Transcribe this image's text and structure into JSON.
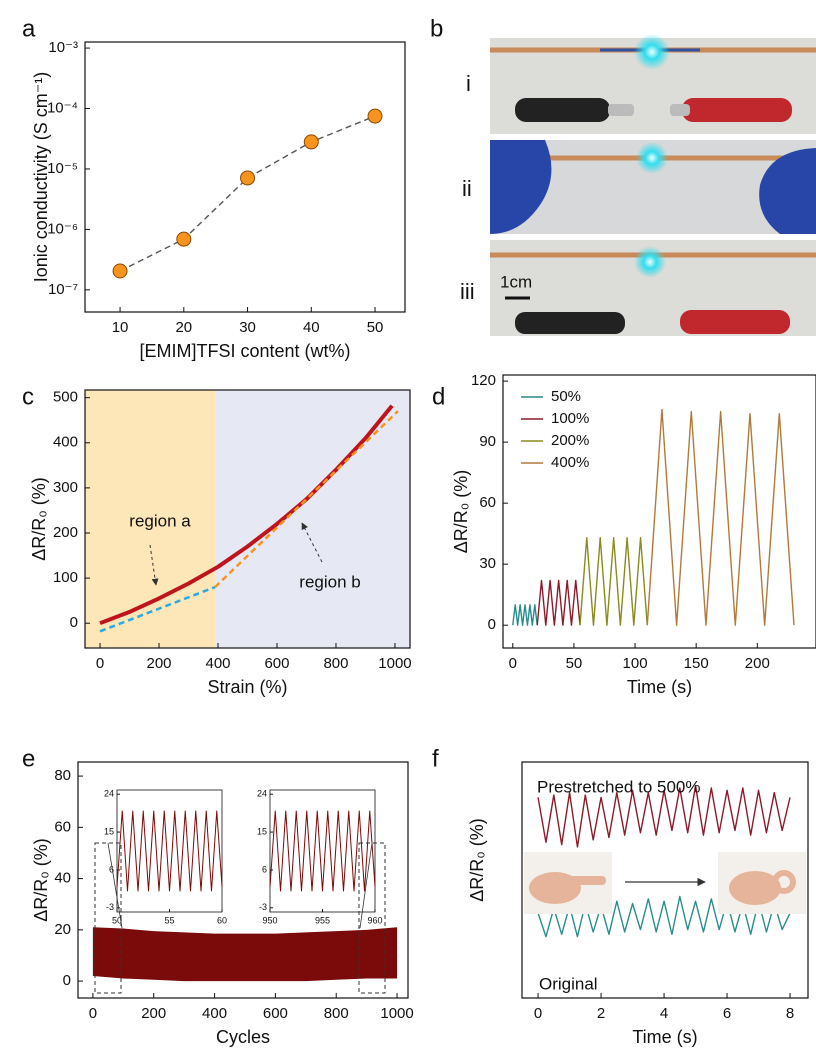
{
  "photo_panel": {
    "label": "b",
    "rows": [
      "i",
      "ii",
      "iii"
    ],
    "scale_bar": "1cm"
  },
  "chart_data": [
    {
      "type": "line",
      "panel_label": "a",
      "x_label": "[EMIM]TFSI content (wt%)",
      "y_label": "Ionic conductivity (S cm⁻¹)",
      "y_log": true,
      "markers": true,
      "x": [
        10,
        20,
        30,
        40,
        50
      ],
      "series": [
        {
          "color": "#f7941d",
          "line_color": "#555555",
          "dashed": true,
          "values": [
            2.05e-07,
            6.9e-07,
            7.1e-06,
            2.8e-05,
            7.5e-05
          ]
        }
      ],
      "xlim": [
        4.5,
        54.7
      ],
      "ylim": [
        4.3e-08,
        0.00126
      ],
      "xticks": [
        10,
        20,
        30,
        40,
        50
      ],
      "yticks": [
        {
          "value": 1e-07,
          "label": "10⁻⁷"
        },
        {
          "value": 1e-06,
          "label": "10⁻⁶"
        },
        {
          "value": 1e-05,
          "label": "10⁻⁵"
        },
        {
          "value": 0.0001,
          "label": "10⁻⁴"
        },
        {
          "value": 0.001,
          "label": "10⁻³"
        }
      ]
    },
    {
      "type": "line",
      "panel_label": "c",
      "x_label": "Strain (%)",
      "y_label": "ΔR/R₀ (%)",
      "regions": [
        {
          "x": [
            -51,
            390
          ],
          "color": "#fde6b8"
        },
        {
          "x": [
            390,
            1051
          ],
          "color": "#e6e9f4"
        }
      ],
      "series": [
        {
          "color": "#c0141c",
          "width": 4,
          "x": [
            0,
            100,
            200,
            300,
            400,
            500,
            600,
            700,
            800,
            900,
            990
          ],
          "values": [
            0,
            25,
            55,
            88,
            125,
            170,
            220,
            275,
            340,
            410,
            482
          ]
        },
        {
          "color": "#29abe2",
          "dashed": true,
          "width": 2.5,
          "x": [
            0,
            390
          ],
          "values": [
            -18,
            80
          ]
        },
        {
          "color": "#f7931e",
          "dashed": true,
          "width": 2.5,
          "x": [
            390,
            1010
          ],
          "values": [
            80,
            470
          ]
        }
      ],
      "annotations": [
        "region a",
        "region b"
      ],
      "xlim": [
        -51,
        1051
      ],
      "ylim": [
        -55,
        517
      ],
      "xticks": [
        0,
        200,
        400,
        600,
        800,
        1000
      ],
      "yticks": [
        0,
        100,
        200,
        300,
        400,
        500
      ]
    },
    {
      "type": "line",
      "panel_label": "d",
      "x_label": "Time (s)",
      "y_label": "ΔR/R₀ (%)",
      "legend": "upper left",
      "series": [
        {
          "name": "50%",
          "color": "#2a8c8c",
          "x": [
            0,
            2,
            4,
            6,
            8,
            10,
            12,
            14,
            16,
            18,
            20
          ],
          "values": [
            0,
            10,
            0,
            10,
            0,
            10,
            0,
            10,
            0,
            10,
            0
          ]
        },
        {
          "name": "100%",
          "color": "#8b1a2b",
          "x": [
            20,
            23.5,
            27,
            30.5,
            34,
            37.5,
            41,
            44.5,
            48,
            51.5,
            55
          ],
          "values": [
            0,
            22,
            0,
            22,
            0,
            22,
            0,
            22,
            0,
            22,
            0
          ]
        },
        {
          "name": "200%",
          "color": "#8a8a1e",
          "x": [
            55,
            60.5,
            66,
            71.5,
            77,
            82.5,
            88,
            93.5,
            99,
            104.5,
            110
          ],
          "values": [
            0,
            43,
            0,
            43,
            0,
            43,
            0,
            43,
            0,
            43,
            0
          ]
        },
        {
          "name": "400%",
          "color": "#b07a3a",
          "x": [
            110,
            122,
            134,
            146,
            158,
            170,
            182,
            194,
            206,
            218,
            230
          ],
          "values": [
            0,
            106,
            0,
            105,
            0,
            105,
            0,
            104,
            0,
            104,
            0
          ]
        }
      ],
      "xlim": [
        -8,
        248
      ],
      "ylim": [
        -11.2,
        123
      ],
      "xticks": [
        0,
        50,
        100,
        150,
        200
      ],
      "yticks": [
        0,
        30,
        60,
        90,
        120
      ]
    },
    {
      "type": "band",
      "panel_label": "e",
      "x_label": "Cycles",
      "y_label": "ΔR/R₀ (%)",
      "color": "#7b0a0a",
      "x": [
        0,
        100,
        200,
        300,
        400,
        500,
        600,
        700,
        800,
        900,
        1000
      ],
      "upper": [
        21,
        20.5,
        19.5,
        19,
        18.5,
        18.5,
        18.5,
        19,
        19.5,
        20,
        21
      ],
      "lower": [
        2,
        1,
        0.5,
        0,
        0,
        0,
        0,
        0,
        0.5,
        1,
        1
      ],
      "xlim": [
        -49,
        1036
      ],
      "ylim": [
        -6.6,
        85.5
      ],
      "xticks": [
        0,
        200,
        400,
        600,
        800,
        1000
      ],
      "yticks": [
        0,
        20,
        40,
        60,
        80
      ],
      "insets": [
        {
          "type": "line",
          "x": [
            50,
            50.5,
            51,
            51.5,
            52,
            52.5,
            53,
            53.5,
            54,
            54.5,
            55,
            55.5,
            56,
            56.5,
            57,
            57.5,
            58,
            58.5,
            59,
            59.5,
            60
          ],
          "series": [
            {
              "color": "#7b0a0a",
              "values": [
                2,
                20,
                1,
                20,
                1,
                20,
                1,
                20,
                1,
                20,
                1,
                20,
                1,
                20,
                1,
                20,
                1,
                20,
                1,
                20,
                2
              ]
            }
          ],
          "xlim": [
            50,
            60
          ],
          "ylim": [
            -4,
            25
          ],
          "xticks": [
            50,
            55,
            60
          ],
          "yticks": [
            -3,
            6,
            15,
            24
          ]
        },
        {
          "type": "line",
          "x": [
            950,
            950.5,
            951,
            951.5,
            952,
            952.5,
            953,
            953.5,
            954,
            954.5,
            955,
            955.5,
            956,
            956.5,
            957,
            957.5,
            958,
            958.5,
            959,
            959.5,
            960
          ],
          "series": [
            {
              "color": "#7b0a0a",
              "values": [
                2,
                20,
                1,
                20,
                1,
                20,
                1,
                20,
                1,
                20,
                1,
                20,
                1,
                20,
                1,
                20,
                1,
                20,
                1,
                20,
                2
              ]
            }
          ],
          "xlim": [
            950,
            960
          ],
          "ylim": [
            -4,
            25
          ],
          "xticks": [
            950,
            955,
            960
          ],
          "yticks": [
            -3,
            6,
            15,
            24
          ]
        }
      ]
    },
    {
      "type": "line",
      "panel_label": "f",
      "x_label": "Time (s)",
      "y_label": "ΔR/R₀ (%)",
      "x": [
        0,
        0.25,
        0.5,
        0.75,
        1,
        1.25,
        1.5,
        1.75,
        2,
        2.25,
        2.5,
        2.75,
        3,
        3.25,
        3.5,
        3.75,
        4,
        4.25,
        4.5,
        4.75,
        5,
        5.25,
        5.5,
        5.75,
        6,
        6.25,
        6.5,
        6.75,
        7,
        7.25,
        7.5,
        7.75,
        8
      ],
      "series": [
        {
          "color": "#8b1a2b",
          "values": [
            8.5,
            6.6,
            8.6,
            6.5,
            8.7,
            6.4,
            8.6,
            6.7,
            8.5,
            6.8,
            8.7,
            6.9,
            8.8,
            7.0,
            8.7,
            6.9,
            8.8,
            7.1,
            8.9,
            7.0,
            9.0,
            6.9,
            8.9,
            7.0,
            8.8,
            7.1,
            8.9,
            6.9,
            8.8,
            7.0,
            8.7,
            7.1,
            8.5
          ]
        },
        {
          "color": "#2a8c8c",
          "values": [
            3.6,
            2.6,
            3.8,
            2.7,
            3.9,
            2.6,
            4.0,
            2.8,
            3.9,
            2.7,
            4.1,
            2.8,
            4.0,
            2.9,
            4.2,
            2.8,
            4.1,
            2.7,
            4.3,
            2.9,
            4.1,
            2.8,
            4.2,
            2.9,
            4.1,
            2.8,
            4.0,
            2.7,
            4.1,
            2.8,
            4.0,
            2.9,
            3.6
          ]
        }
      ],
      "annotations": [
        "Prestretched to 500%",
        "Original"
      ],
      "xlim": [
        -0.51,
        8.57
      ],
      "ylim": [
        0,
        10
      ],
      "xticks": [
        0,
        2,
        4,
        6,
        8
      ]
    }
  ]
}
